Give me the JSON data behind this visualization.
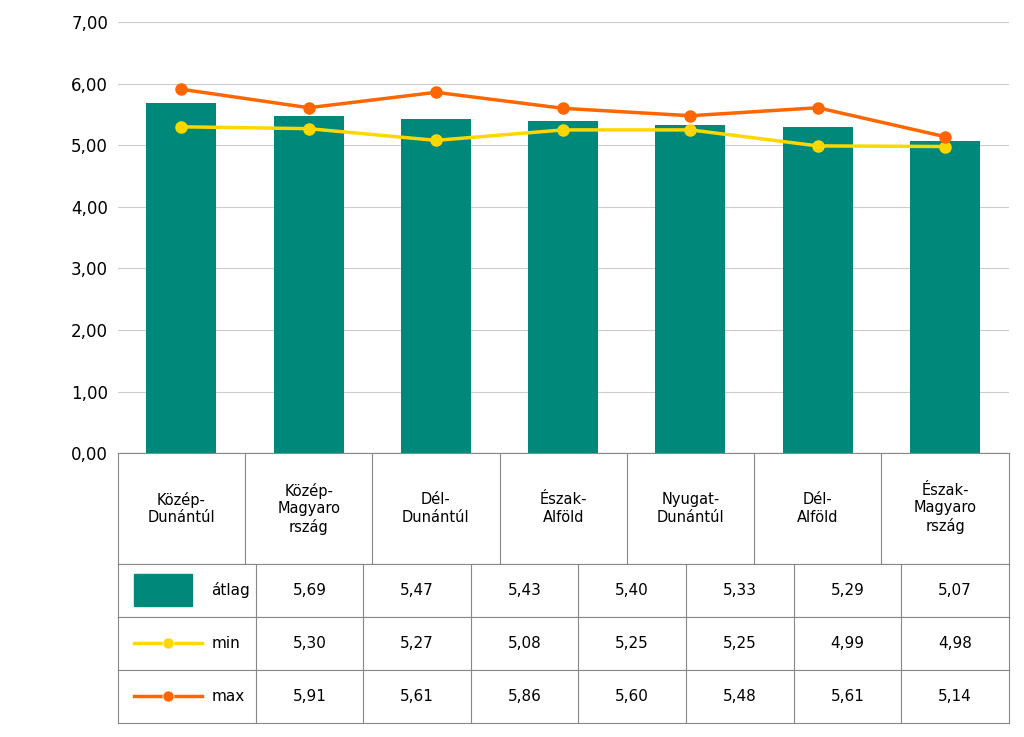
{
  "categories": [
    "Közép-\nDunántúl",
    "Közép-\nMagyaro\nrszág",
    "Dél-\nDunántúl",
    "Észak-\nAlföld",
    "Nyugat-\nDunántúl",
    "Dél-\nAlföld",
    "Észak-\nMagyaro\nrszág"
  ],
  "avg_values": [
    5.69,
    5.47,
    5.43,
    5.4,
    5.33,
    5.29,
    5.07
  ],
  "min_values": [
    5.3,
    5.27,
    5.08,
    5.25,
    5.25,
    4.99,
    4.98
  ],
  "max_values": [
    5.91,
    5.61,
    5.86,
    5.6,
    5.48,
    5.61,
    5.14
  ],
  "bar_color": "#00897B",
  "min_line_color": "#FFD700",
  "max_line_color": "#FF6600",
  "background_color": "#FFFFFF",
  "ylim": [
    0,
    7.0
  ],
  "yticks": [
    0.0,
    1.0,
    2.0,
    3.0,
    4.0,
    5.0,
    6.0,
    7.0
  ],
  "legend_labels": [
    "átlag",
    "min",
    "max"
  ],
  "grid_color": "#CCCCCC",
  "border_color": "#888888",
  "avg_label_values": [
    "5,69",
    "5,47",
    "5,43",
    "5,40",
    "5,33",
    "5,29",
    "5,07"
  ],
  "min_label_values": [
    "5,30",
    "5,27",
    "5,08",
    "5,25",
    "5,25",
    "4,99",
    "4,98"
  ],
  "max_label_values": [
    "5,91",
    "5,61",
    "5,86",
    "5,60",
    "5,48",
    "5,61",
    "5,14"
  ]
}
